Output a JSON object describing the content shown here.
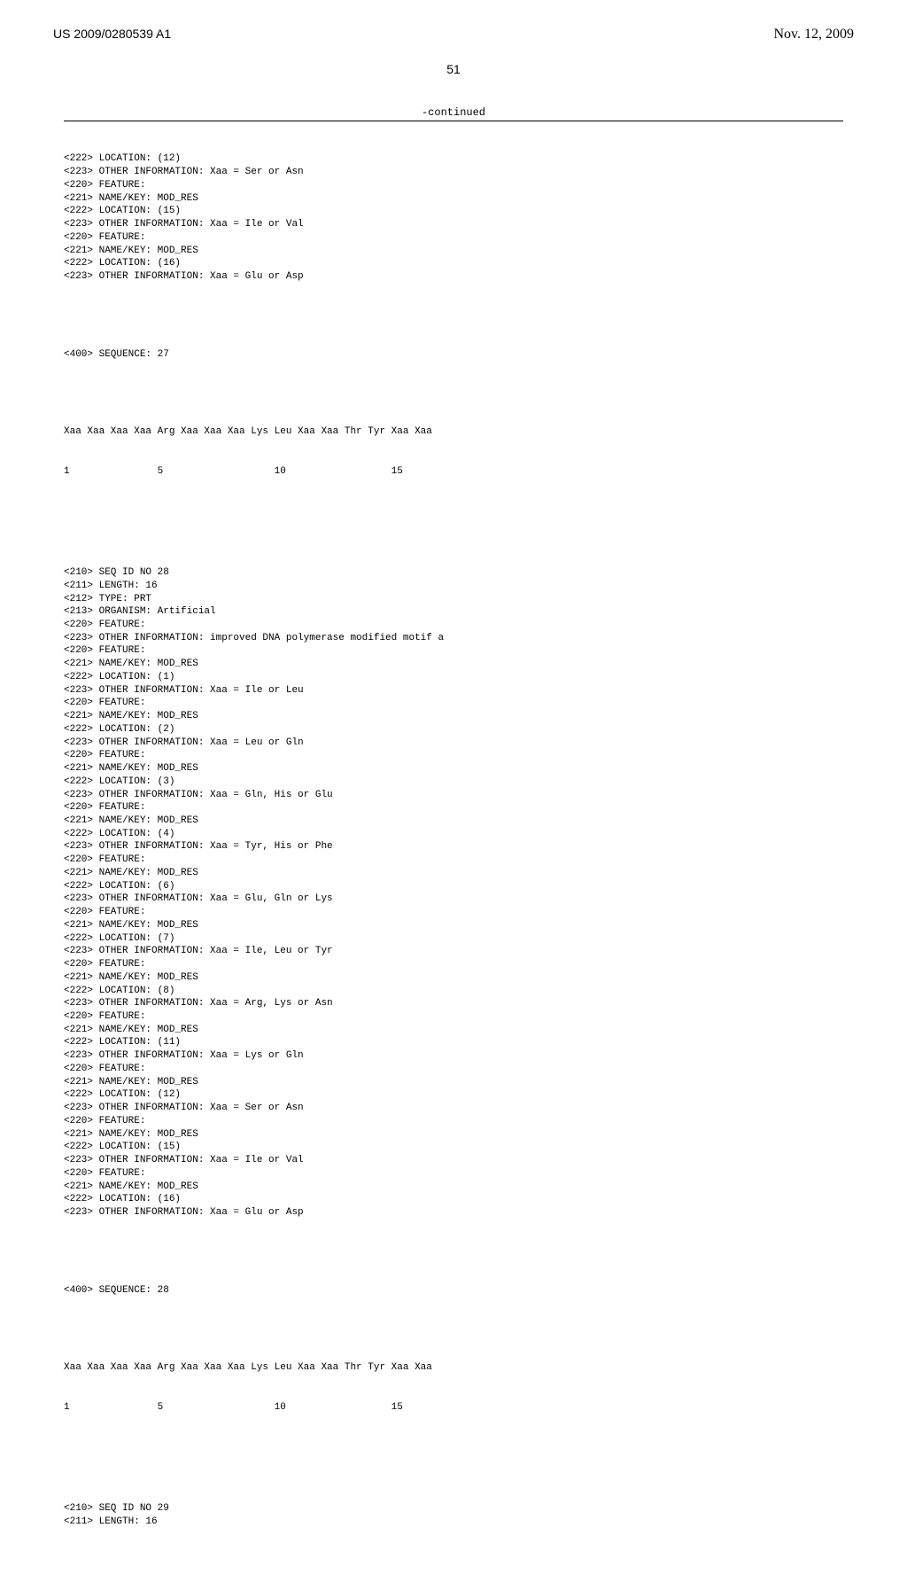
{
  "header": {
    "publication_number": "US 2009/0280539 A1",
    "publication_date": "Nov. 12, 2009"
  },
  "page_number": "51",
  "continued_label": "-continued",
  "colors": {
    "text": "#000000",
    "background": "#ffffff",
    "rule": "#000000"
  },
  "typography": {
    "mono_family": "Courier New",
    "sans_family": "Arial",
    "serif_family": "Times New Roman",
    "header_fontsize_pt": 10,
    "date_fontsize_pt": 12,
    "pagenum_fontsize_pt": 10,
    "body_fontsize_pt": 8,
    "body_line_height": 1.34
  },
  "block1": {
    "lines": [
      "<222> LOCATION: (12)",
      "<223> OTHER INFORMATION: Xaa = Ser or Asn",
      "<220> FEATURE:",
      "<221> NAME/KEY: MOD_RES",
      "<222> LOCATION: (15)",
      "<223> OTHER INFORMATION: Xaa = Ile or Val",
      "<220> FEATURE:",
      "<221> NAME/KEY: MOD_RES",
      "<222> LOCATION: (16)",
      "<223> OTHER INFORMATION: Xaa = Glu or Asp"
    ],
    "seq_header": "<400> SEQUENCE: 27",
    "seq_residues": "Xaa Xaa Xaa Xaa Arg Xaa Xaa Xaa Lys Leu Xaa Xaa Thr Tyr Xaa Xaa",
    "seq_numbers": "1               5                   10                  15"
  },
  "block2": {
    "header_lines": [
      "<210> SEQ ID NO 28",
      "<211> LENGTH: 16",
      "<212> TYPE: PRT",
      "<213> ORGANISM: Artificial",
      "<220> FEATURE:",
      "<223> OTHER INFORMATION: improved DNA polymerase modified motif a",
      "<220> FEATURE:",
      "<221> NAME/KEY: MOD_RES",
      "<222> LOCATION: (1)",
      "<223> OTHER INFORMATION: Xaa = Ile or Leu",
      "<220> FEATURE:",
      "<221> NAME/KEY: MOD_RES",
      "<222> LOCATION: (2)",
      "<223> OTHER INFORMATION: Xaa = Leu or Gln",
      "<220> FEATURE:",
      "<221> NAME/KEY: MOD_RES",
      "<222> LOCATION: (3)",
      "<223> OTHER INFORMATION: Xaa = Gln, His or Glu",
      "<220> FEATURE:",
      "<221> NAME/KEY: MOD_RES",
      "<222> LOCATION: (4)",
      "<223> OTHER INFORMATION: Xaa = Tyr, His or Phe",
      "<220> FEATURE:",
      "<221> NAME/KEY: MOD_RES",
      "<222> LOCATION: (6)",
      "<223> OTHER INFORMATION: Xaa = Glu, Gln or Lys",
      "<220> FEATURE:",
      "<221> NAME/KEY: MOD_RES",
      "<222> LOCATION: (7)",
      "<223> OTHER INFORMATION: Xaa = Ile, Leu or Tyr",
      "<220> FEATURE:",
      "<221> NAME/KEY: MOD_RES",
      "<222> LOCATION: (8)",
      "<223> OTHER INFORMATION: Xaa = Arg, Lys or Asn",
      "<220> FEATURE:",
      "<221> NAME/KEY: MOD_RES",
      "<222> LOCATION: (11)",
      "<223> OTHER INFORMATION: Xaa = Lys or Gln",
      "<220> FEATURE:",
      "<221> NAME/KEY: MOD_RES",
      "<222> LOCATION: (12)",
      "<223> OTHER INFORMATION: Xaa = Ser or Asn",
      "<220> FEATURE:",
      "<221> NAME/KEY: MOD_RES",
      "<222> LOCATION: (15)",
      "<223> OTHER INFORMATION: Xaa = Ile or Val",
      "<220> FEATURE:",
      "<221> NAME/KEY: MOD_RES",
      "<222> LOCATION: (16)",
      "<223> OTHER INFORMATION: Xaa = Glu or Asp"
    ],
    "seq_header": "<400> SEQUENCE: 28",
    "seq_residues": "Xaa Xaa Xaa Xaa Arg Xaa Xaa Xaa Lys Leu Xaa Xaa Thr Tyr Xaa Xaa",
    "seq_numbers": "1               5                   10                  15"
  },
  "block3": {
    "lines": [
      "<210> SEQ ID NO 29",
      "<211> LENGTH: 16"
    ]
  }
}
